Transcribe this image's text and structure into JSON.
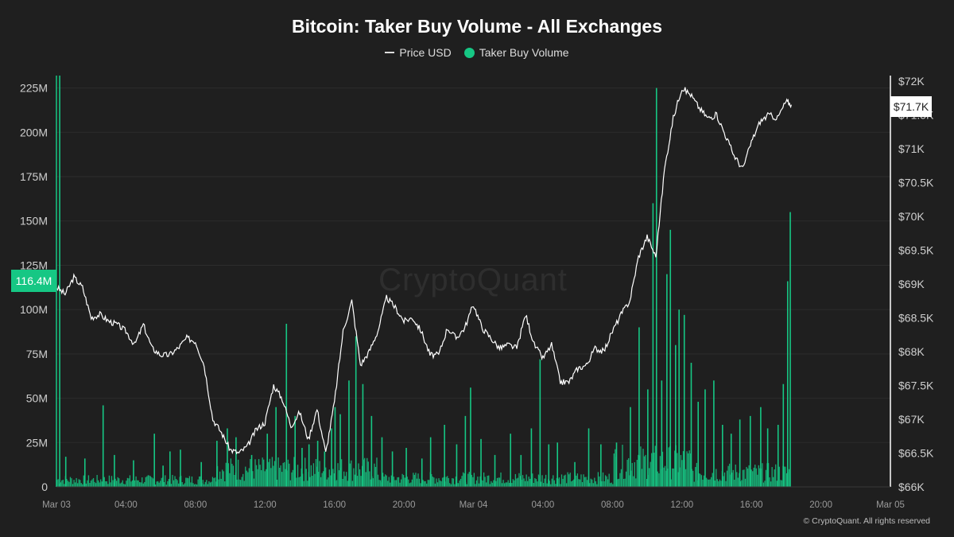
{
  "chart_data": {
    "type": "bar",
    "title": "Bitcoin: Taker Buy Volume - All Exchanges",
    "legend": [
      "Price USD",
      "Taker Buy Volume"
    ],
    "legend_position": "top-center",
    "grid": true,
    "y_left": {
      "ticks": [
        "0",
        "25M",
        "50M",
        "75M",
        "100M",
        "125M",
        "150M",
        "175M",
        "200M",
        "225M"
      ],
      "range": [
        0,
        232000000
      ],
      "current_label": "116.4M"
    },
    "y_right": {
      "ticks": [
        "$66K",
        "$66.5K",
        "$67K",
        "$67.5K",
        "$68K",
        "$68.5K",
        "$69K",
        "$69.5K",
        "$70K",
        "$70.5K",
        "$71K",
        "$71.5K",
        "$72K"
      ],
      "range": [
        66000,
        72080
      ],
      "current_label": "$71.7K"
    },
    "x_axis": {
      "ticks": [
        "Mar 03",
        "04:00",
        "08:00",
        "12:00",
        "16:00",
        "20:00",
        "Mar 04",
        "04:00",
        "08:00",
        "12:00",
        "16:00",
        "20:00",
        "Mar 05"
      ],
      "range_hours": [
        0,
        48
      ]
    },
    "colors": {
      "price": "#ffffff",
      "volume": "#16c784"
    },
    "series": [
      {
        "name": "Price USD",
        "type": "line",
        "points": [
          [
            0,
            68950
          ],
          [
            0.5,
            68850
          ],
          [
            1,
            69100
          ],
          [
            1.5,
            68950
          ],
          [
            2,
            68500
          ],
          [
            2.5,
            68550
          ],
          [
            3,
            68450
          ],
          [
            3.5,
            68400
          ],
          [
            4,
            68300
          ],
          [
            4.5,
            68100
          ],
          [
            5,
            68400
          ],
          [
            5.5,
            68050
          ],
          [
            6,
            67950
          ],
          [
            6.5,
            67950
          ],
          [
            7,
            68050
          ],
          [
            7.5,
            68200
          ],
          [
            8,
            68150
          ],
          [
            8.5,
            67800
          ],
          [
            9,
            67000
          ],
          [
            9.5,
            66800
          ],
          [
            10,
            66550
          ],
          [
            10.5,
            66500
          ],
          [
            11,
            66600
          ],
          [
            11.5,
            66850
          ],
          [
            12,
            66950
          ],
          [
            12.5,
            67500
          ],
          [
            13,
            67300
          ],
          [
            13.5,
            66900
          ],
          [
            14,
            67100
          ],
          [
            14.5,
            66700
          ],
          [
            15,
            67150
          ],
          [
            15.5,
            66500
          ],
          [
            16,
            67250
          ],
          [
            16.5,
            68300
          ],
          [
            17,
            68750
          ],
          [
            17.5,
            67800
          ],
          [
            18,
            68000
          ],
          [
            18.5,
            68300
          ],
          [
            19,
            68800
          ],
          [
            19.5,
            68650
          ],
          [
            20,
            68450
          ],
          [
            20.5,
            68500
          ],
          [
            21,
            68300
          ],
          [
            21.5,
            67950
          ],
          [
            22,
            67950
          ],
          [
            22.5,
            68350
          ],
          [
            23,
            68200
          ],
          [
            23.5,
            68350
          ],
          [
            24,
            68700
          ],
          [
            24.5,
            68350
          ],
          [
            25,
            68200
          ],
          [
            25.5,
            68050
          ],
          [
            26,
            68100
          ],
          [
            26.5,
            68050
          ],
          [
            27,
            68550
          ],
          [
            27.5,
            68100
          ],
          [
            28,
            67900
          ],
          [
            28.5,
            68100
          ],
          [
            29,
            67550
          ],
          [
            29.5,
            67550
          ],
          [
            30,
            67750
          ],
          [
            30.5,
            67800
          ],
          [
            31,
            68050
          ],
          [
            31.5,
            68000
          ],
          [
            32,
            68300
          ],
          [
            32.5,
            68550
          ],
          [
            33,
            68750
          ],
          [
            33.5,
            69400
          ],
          [
            34,
            69700
          ],
          [
            34.5,
            69400
          ],
          [
            35,
            70700
          ],
          [
            35.5,
            71450
          ],
          [
            36,
            71900
          ],
          [
            36.5,
            71800
          ],
          [
            37,
            71600
          ],
          [
            37.5,
            71450
          ],
          [
            38,
            71500
          ],
          [
            38.5,
            71200
          ],
          [
            39,
            70900
          ],
          [
            39.5,
            70700
          ],
          [
            40,
            71100
          ],
          [
            40.5,
            71400
          ],
          [
            41,
            71500
          ],
          [
            41.5,
            71450
          ],
          [
            42,
            71700
          ],
          [
            42.3,
            71650
          ]
        ]
      },
      {
        "name": "Taker Buy Volume",
        "type": "bar",
        "spikes": [
          [
            0.15,
            232000000
          ],
          [
            0.5,
            17000000
          ],
          [
            1.6,
            16000000
          ],
          [
            2.65,
            46000000
          ],
          [
            3.3,
            18000000
          ],
          [
            4.4,
            15000000
          ],
          [
            5.6,
            30000000
          ],
          [
            6.1,
            12000000
          ],
          [
            6.5,
            20000000
          ],
          [
            7.1,
            21000000
          ],
          [
            8.3,
            14000000
          ],
          [
            9.2,
            26000000
          ],
          [
            9.8,
            33000000
          ],
          [
            10.3,
            28000000
          ],
          [
            11.2,
            18000000
          ],
          [
            12.1,
            30000000
          ],
          [
            12.6,
            45000000
          ],
          [
            13.2,
            92000000
          ],
          [
            13.7,
            40000000
          ],
          [
            14.1,
            22000000
          ],
          [
            14.5,
            24000000
          ],
          [
            15.0,
            26000000
          ],
          [
            15.4,
            20000000
          ],
          [
            15.8,
            33000000
          ],
          [
            16.0,
            45000000
          ],
          [
            16.3,
            41000000
          ],
          [
            16.8,
            60000000
          ],
          [
            17.2,
            85000000
          ],
          [
            17.6,
            58000000
          ],
          [
            18.1,
            40000000
          ],
          [
            18.7,
            28000000
          ],
          [
            19.3,
            20000000
          ],
          [
            20.1,
            22000000
          ],
          [
            21.0,
            16000000
          ],
          [
            21.5,
            28000000
          ],
          [
            22.3,
            35000000
          ],
          [
            23.0,
            24000000
          ],
          [
            23.5,
            40000000
          ],
          [
            23.8,
            56000000
          ],
          [
            24.4,
            27000000
          ],
          [
            25.2,
            18000000
          ],
          [
            26.1,
            30000000
          ],
          [
            26.7,
            18000000
          ],
          [
            27.3,
            33000000
          ],
          [
            27.8,
            72000000
          ],
          [
            28.3,
            24000000
          ],
          [
            28.8,
            25000000
          ],
          [
            29.8,
            14000000
          ],
          [
            30.6,
            33000000
          ],
          [
            31.3,
            24000000
          ],
          [
            32.2,
            25000000
          ],
          [
            33.0,
            45000000
          ],
          [
            33.5,
            90000000
          ],
          [
            34.0,
            55000000
          ],
          [
            34.3,
            160000000
          ],
          [
            34.5,
            225000000
          ],
          [
            34.8,
            60000000
          ],
          [
            35.1,
            120000000
          ],
          [
            35.3,
            145000000
          ],
          [
            35.6,
            80000000
          ],
          [
            35.8,
            100000000
          ],
          [
            36.1,
            97000000
          ],
          [
            36.5,
            70000000
          ],
          [
            36.9,
            48000000
          ],
          [
            37.3,
            55000000
          ],
          [
            37.8,
            60000000
          ],
          [
            38.3,
            35000000
          ],
          [
            38.8,
            30000000
          ],
          [
            39.3,
            38000000
          ],
          [
            39.9,
            40000000
          ],
          [
            40.5,
            45000000
          ],
          [
            40.9,
            33000000
          ],
          [
            41.5,
            35000000
          ],
          [
            41.8,
            58000000
          ],
          [
            42.05,
            116000000
          ],
          [
            42.2,
            155000000
          ]
        ],
        "current_value": 116400000
      }
    ]
  },
  "watermark": "CryptoQuant",
  "copyright": "© CryptoQuant. All rights reserved"
}
